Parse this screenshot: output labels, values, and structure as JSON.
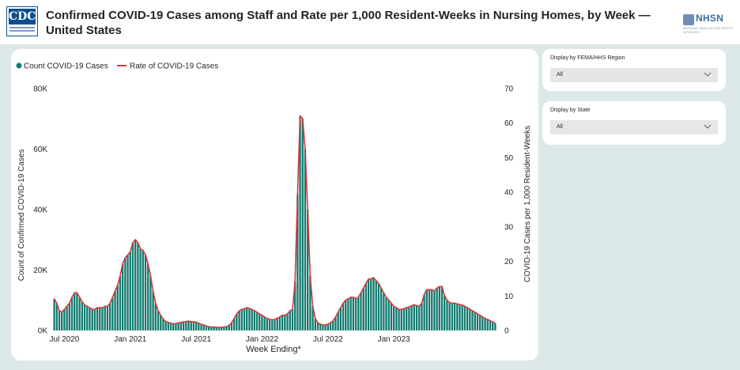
{
  "header": {
    "title": "Confirmed COVID-19 Cases among Staff and Rate per 1,000 Resident-Weeks in Nursing Homes, by Week — United States",
    "cdc_logo_text": "CDC",
    "nhsn_logo_text": "NHSN",
    "nhsn_logo_sub": "NATIONAL HEALTHCARE SAFETY NETWORK"
  },
  "slicers": [
    {
      "label": "Display by FEMA/HHS Region",
      "value": "All"
    },
    {
      "label": "Display by State",
      "value": "All"
    }
  ],
  "colors": {
    "bar": "#117a6e",
    "line": "#d13a3f",
    "background": "#dde8e8"
  },
  "chart_data": {
    "type": "bar+line",
    "xlabel": "Week Ending*",
    "ylabel": "Count of Confirmed COVID-19 Cases",
    "y2label": "COVID-19 Cases per 1,000 Resident-Weeks",
    "ylim": [
      0,
      80000
    ],
    "y2lim": [
      0,
      70
    ],
    "yticks": [
      "0K",
      "20K",
      "40K",
      "60K",
      "80K"
    ],
    "y2ticks": [
      "0",
      "10",
      "20",
      "30",
      "40",
      "50",
      "60",
      "70"
    ],
    "xticks": [
      "Jul 2020",
      "Jan 2021",
      "Jul 2021",
      "Jan 2022",
      "Jul 2022",
      "Jan 2023"
    ],
    "legend": {
      "position": "top-left",
      "items": [
        "Count COVID-19 Cases",
        "Rate of COVID-19 Cases"
      ]
    },
    "series": [
      {
        "name": "Count COVID-19 Cases",
        "kind": "bar",
        "week_index_start": 0,
        "note_start_week": "2020-05-31",
        "values": [
          10500,
          9000,
          6500,
          6000,
          7000,
          8000,
          9000,
          11000,
          12500,
          12500,
          11000,
          9500,
          8500,
          8000,
          7500,
          7000,
          7000,
          7500,
          7500,
          7500,
          8000,
          8000,
          9000,
          11000,
          13000,
          15000,
          18000,
          22000,
          24000,
          25000,
          26000,
          29000,
          30000,
          29000,
          27000,
          26500,
          25000,
          22000,
          18000,
          13000,
          9000,
          6500,
          5000,
          3800,
          3000,
          2600,
          2400,
          2200,
          2300,
          2500,
          2600,
          2800,
          3000,
          3100,
          3000,
          2900,
          2700,
          2400,
          2100,
          1800,
          1500,
          1300,
          1200,
          1100,
          1000,
          1000,
          1000,
          1100,
          1300,
          1700,
          2500,
          4000,
          5500,
          6500,
          7000,
          7200,
          7500,
          7300,
          7000,
          6500,
          6000,
          5500,
          5000,
          4500,
          4000,
          3700,
          3500,
          3600,
          4000,
          4500,
          5000,
          5000,
          5500,
          6500,
          7000,
          16000,
          45000,
          71000,
          70000,
          60000,
          40000,
          18000,
          8000,
          4000,
          2500,
          2000,
          1800,
          1800,
          2000,
          2500,
          3200,
          4500,
          6000,
          7500,
          9000,
          10000,
          10500,
          11000,
          11000,
          10500,
          11000,
          12500,
          14000,
          15500,
          17000,
          17000,
          17500,
          16500,
          15500,
          14000,
          12500,
          11000,
          10000,
          9000,
          8000,
          7500,
          7000,
          7000,
          7200,
          7500,
          7800,
          8200,
          8500,
          8200,
          8000,
          9000,
          12000,
          13500,
          13500,
          13500,
          13000,
          14000,
          14500,
          14500,
          11500,
          10000,
          9200,
          9000,
          9000,
          8800,
          8600,
          8400,
          8000,
          7500,
          7000,
          6500,
          6000,
          5500,
          5000,
          4500,
          4000,
          3600,
          3200,
          2800,
          2400
        ]
      },
      {
        "name": "Rate of COVID-19 Cases",
        "kind": "line",
        "axis": "right",
        "values": [
          9.2,
          7.9,
          5.7,
          5.3,
          6.1,
          7.0,
          7.9,
          9.6,
          10.9,
          10.9,
          9.6,
          8.3,
          7.4,
          7.0,
          6.6,
          6.1,
          6.1,
          6.6,
          6.6,
          6.6,
          7.0,
          7.0,
          7.9,
          9.6,
          11.4,
          13.1,
          15.8,
          19.3,
          21.0,
          21.9,
          22.8,
          25.4,
          26.3,
          25.4,
          23.6,
          23.2,
          21.9,
          19.3,
          15.8,
          11.4,
          7.9,
          5.7,
          4.4,
          3.3,
          2.6,
          2.3,
          2.1,
          1.9,
          2.0,
          2.2,
          2.3,
          2.5,
          2.6,
          2.7,
          2.6,
          2.5,
          2.4,
          2.1,
          1.8,
          1.6,
          1.3,
          1.1,
          1.0,
          1.0,
          0.9,
          0.9,
          0.9,
          1.0,
          1.1,
          1.5,
          2.2,
          3.5,
          4.8,
          5.7,
          6.1,
          6.3,
          6.6,
          6.4,
          6.1,
          5.7,
          5.3,
          4.8,
          4.4,
          3.9,
          3.5,
          3.2,
          3.1,
          3.2,
          3.5,
          3.9,
          4.4,
          4.4,
          4.8,
          5.7,
          6.1,
          14.0,
          39.4,
          62.1,
          61.3,
          52.5,
          35.0,
          15.8,
          7.0,
          3.5,
          2.2,
          1.8,
          1.6,
          1.6,
          1.8,
          2.2,
          2.8,
          3.9,
          5.3,
          6.6,
          7.9,
          8.8,
          9.2,
          9.6,
          9.6,
          9.2,
          9.6,
          10.9,
          12.3,
          13.6,
          14.9,
          14.9,
          15.3,
          14.4,
          13.6,
          12.3,
          10.9,
          9.6,
          8.8,
          7.9,
          7.0,
          6.6,
          6.1,
          6.1,
          6.3,
          6.6,
          6.8,
          7.2,
          7.4,
          7.2,
          7.0,
          7.9,
          10.5,
          11.8,
          11.8,
          11.8,
          11.4,
          12.3,
          12.7,
          12.7,
          10.1,
          8.8,
          8.1,
          7.9,
          7.9,
          7.7,
          7.5,
          7.4,
          7.0,
          6.6,
          6.1,
          5.7,
          5.3,
          4.8,
          4.4,
          3.9,
          3.5,
          3.2,
          2.8,
          2.5,
          2.1
        ]
      }
    ]
  }
}
